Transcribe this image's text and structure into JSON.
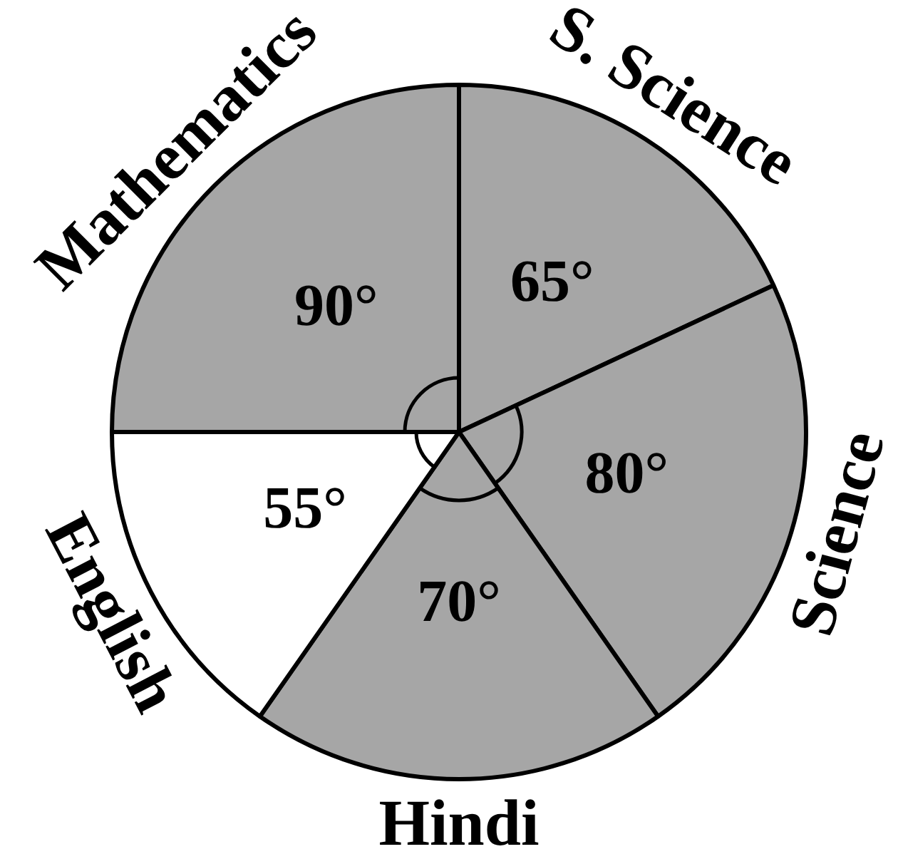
{
  "chart_data": {
    "type": "pie",
    "categories": [
      "S. Science",
      "Science",
      "Hindi",
      "English",
      "Mathematics"
    ],
    "values": [
      65,
      80,
      70,
      55,
      90
    ],
    "colors": [
      "#a6a6a6",
      "#a6a6a6",
      "#a6a6a6",
      "#ffffff",
      "#a6a6a6"
    ],
    "value_labels": [
      "65°",
      "80°",
      "70°",
      "55°",
      "90°"
    ]
  }
}
